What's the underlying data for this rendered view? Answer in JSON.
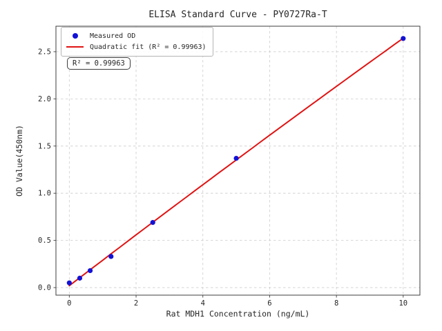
{
  "figure": {
    "background": "#ffffff"
  },
  "chart_data": {
    "type": "scatter",
    "title": "ELISA Standard Curve - PY0727Ra-T",
    "xlabel": "Rat MDH1 Concentration (ng/mL)",
    "ylabel": "OD Value(450nm)",
    "xlim": [
      -0.4,
      10.5
    ],
    "ylim": [
      -0.08,
      2.77
    ],
    "x_ticks": [
      0,
      2,
      4,
      6,
      8,
      10
    ],
    "x_tick_labels": [
      "0",
      "2",
      "4",
      "6",
      "8",
      "10"
    ],
    "y_ticks": [
      0,
      0.5,
      1,
      1.5,
      2,
      2.5
    ],
    "y_tick_labels": [
      "0.0",
      "0.5",
      "1.0",
      "1.5",
      "2.0",
      "2.5"
    ],
    "grid": true,
    "grid_style": "dashed",
    "legend_position": "upper left",
    "series": [
      {
        "name": "Measured OD",
        "type": "scatter",
        "color": "#1212d6",
        "x": [
          0,
          0.3125,
          0.625,
          1.25,
          2.5,
          5,
          10
        ],
        "y": [
          0.05,
          0.1,
          0.18,
          0.33,
          0.69,
          1.37,
          2.64
        ]
      },
      {
        "name": "Quadratic fit (R² = 0.99963)",
        "type": "line",
        "color": "#e01212",
        "fit": "quadratic",
        "r_squared": 0.99963,
        "coeffs": [
          0.02,
          0.271,
          -0.00087
        ],
        "x_range": [
          0,
          10
        ]
      }
    ],
    "annotation": {
      "text": "R² = 0.99963"
    }
  }
}
